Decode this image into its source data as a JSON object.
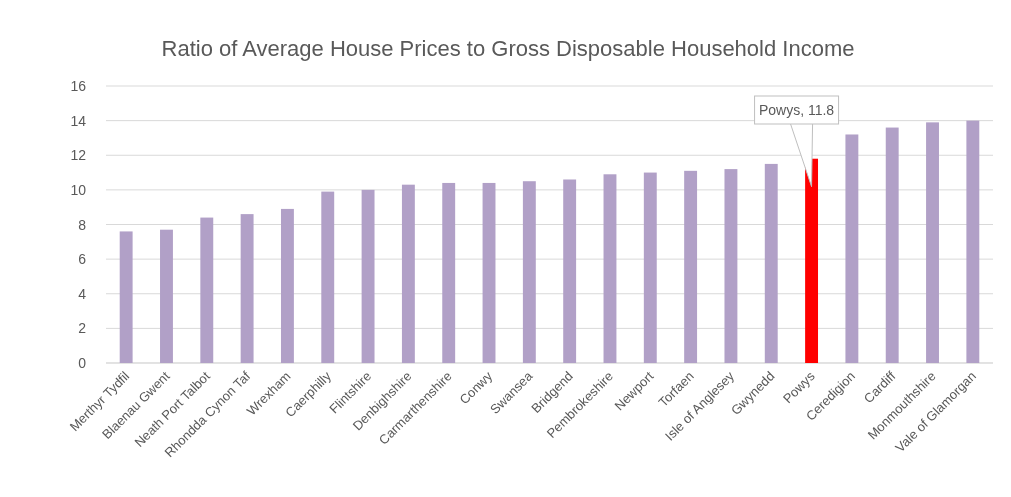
{
  "chart_data": {
    "type": "bar",
    "title": "Ratio of Average House Prices to Gross Disposable Household Income",
    "categories": [
      "Merthyr Tydfil",
      "Blaenau Gwent",
      "Neath Port Talbot",
      "Rhondda Cynon Taf",
      "Wrexham",
      "Caerphilly",
      "Flintshire",
      "Denbighshire",
      "Carmarthenshire",
      "Conwy",
      "Swansea",
      "Bridgend",
      "Pembrokeshire",
      "Newport",
      "Torfaen",
      "Isle of Anglesey",
      "Gwynedd",
      "Powys",
      "Ceredigion",
      "Cardiff",
      "Monmouthshire",
      "Vale of Glamorgan"
    ],
    "values": [
      7.6,
      7.7,
      8.4,
      8.6,
      8.9,
      9.9,
      10.0,
      10.3,
      10.4,
      10.4,
      10.5,
      10.6,
      10.9,
      11.0,
      11.1,
      11.2,
      11.5,
      11.8,
      13.2,
      13.6,
      13.9,
      14.0
    ],
    "colors": [
      "#b1a0c7",
      "#b1a0c7",
      "#b1a0c7",
      "#b1a0c7",
      "#b1a0c7",
      "#b1a0c7",
      "#b1a0c7",
      "#b1a0c7",
      "#b1a0c7",
      "#b1a0c7",
      "#b1a0c7",
      "#b1a0c7",
      "#b1a0c7",
      "#b1a0c7",
      "#b1a0c7",
      "#b1a0c7",
      "#b1a0c7",
      "#ff0000",
      "#b1a0c7",
      "#b1a0c7",
      "#b1a0c7",
      "#b1a0c7"
    ],
    "ylim": [
      0,
      16
    ],
    "yticks": [
      0,
      2,
      4,
      6,
      8,
      10,
      12,
      14,
      16
    ],
    "grid": "y",
    "annotations": [
      {
        "text": "Powys, 11.8",
        "x": "Powys",
        "y": 11.8
      }
    ]
  }
}
